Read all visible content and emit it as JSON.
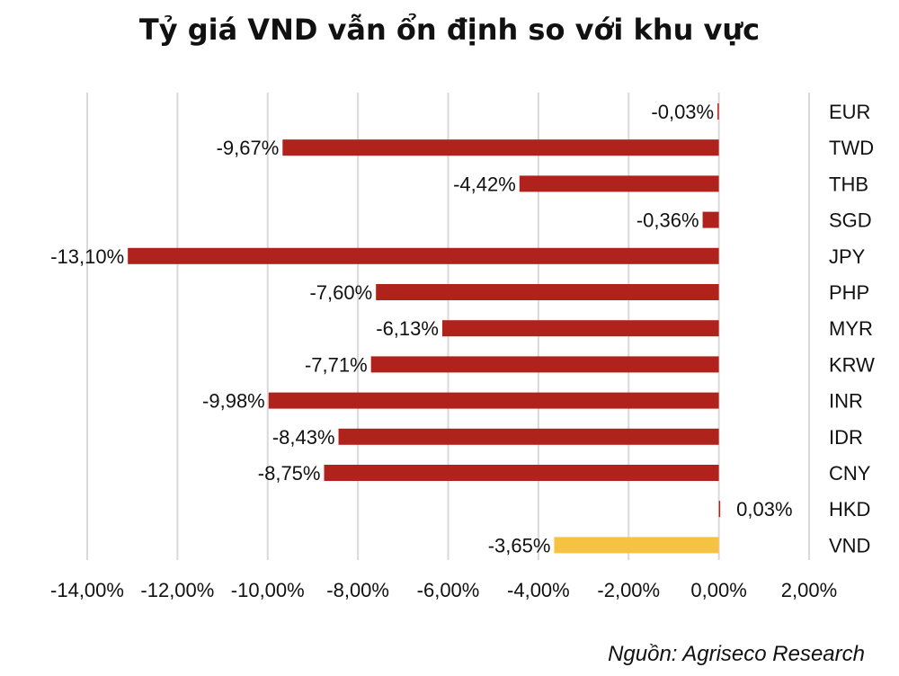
{
  "chart_data": {
    "type": "bar",
    "orientation": "horizontal",
    "title": "Tỷ giá VND vẫn ổn định so với khu vực",
    "categories": [
      "EUR",
      "TWD",
      "THB",
      "SGD",
      "JPY",
      "PHP",
      "MYR",
      "KRW",
      "INR",
      "IDR",
      "CNY",
      "HKD",
      "VND"
    ],
    "values": [
      -0.03,
      -9.67,
      -4.42,
      -0.36,
      -13.1,
      -7.6,
      -6.13,
      -7.71,
      -9.98,
      -8.43,
      -8.75,
      0.03,
      -3.65
    ],
    "data_labels": [
      "-0,03%",
      "-9,67%",
      "-4,42%",
      "-0,36%",
      "-13,10%",
      "-7,60%",
      "-6,13%",
      "-7,71%",
      "-9,98%",
      "-8,43%",
      "-8,75%",
      "0,03%",
      "-3,65%"
    ],
    "xlim": [
      -14,
      2
    ],
    "x_ticks": [
      -14,
      -12,
      -10,
      -8,
      -6,
      -4,
      -2,
      0,
      2
    ],
    "x_tick_labels": [
      "-14,00%",
      "-12,00%",
      "-10,00%",
      "-8,00%",
      "-6,00%",
      "-4,00%",
      "-2,00%",
      "0,00%",
      "2,00%"
    ],
    "grid": true,
    "colors": {
      "default": "#b0231c",
      "highlight": "#f5c242",
      "grid": "#d9d9d9"
    },
    "highlight_category": "VND",
    "source": "Nguồn: Agriseco Research"
  }
}
